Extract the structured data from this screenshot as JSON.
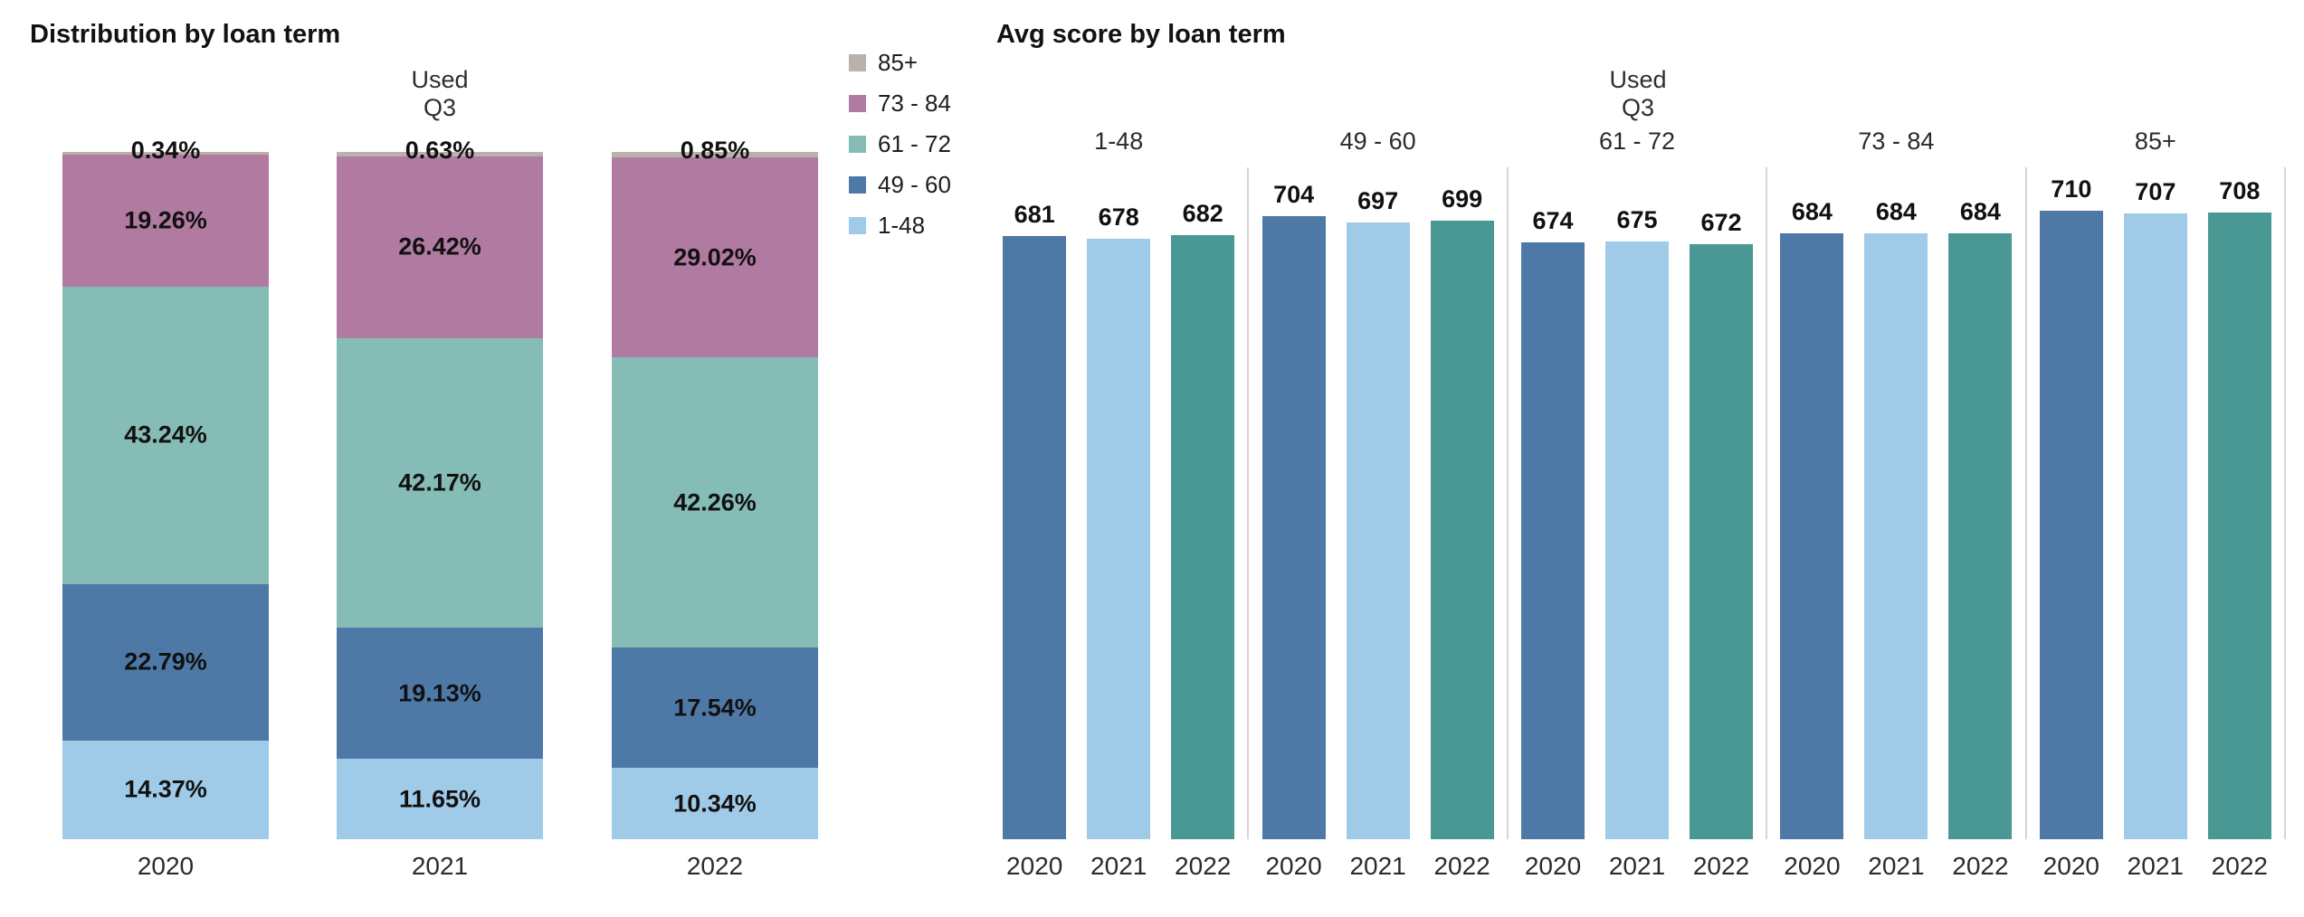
{
  "left_chart": {
    "title": "Distribution by loan term",
    "pane_header": [
      "Used",
      "Q3"
    ],
    "x_labels": [
      "2020",
      "2021",
      "2022"
    ]
  },
  "legend": {
    "items": [
      {
        "name": "swatch-85plus",
        "label": "85+",
        "color": "#BAB0AC"
      },
      {
        "name": "swatch-73-84",
        "label": "73 - 84",
        "color": "#B07AA1"
      },
      {
        "name": "swatch-61-72",
        "label": "61 - 72",
        "color": "#86BCB6"
      },
      {
        "name": "swatch-49-60",
        "label": "49 - 60",
        "color": "#4E79A7"
      },
      {
        "name": "swatch-1-48",
        "label": "1-48",
        "color": "#A0CBE8"
      }
    ]
  },
  "right_chart": {
    "title": "Avg score by loan term",
    "pane_header": [
      "Used",
      "Q3"
    ],
    "group_labels": [
      "1-48",
      "49 - 60",
      "61 - 72",
      "73 - 84",
      "85+"
    ],
    "x_labels": [
      "2020",
      "2021",
      "2022"
    ]
  },
  "chart_data": [
    {
      "type": "bar",
      "variant": "stacked_percent",
      "title": "Distribution by loan term",
      "pane_header": "Used Q3",
      "categories": [
        "2020",
        "2021",
        "2022"
      ],
      "series": [
        {
          "name": "85+",
          "color": "#BAB0AC",
          "values": [
            0.34,
            0.63,
            0.85
          ]
        },
        {
          "name": "73 - 84",
          "color": "#B07AA1",
          "values": [
            19.26,
            26.42,
            29.02
          ]
        },
        {
          "name": "61 - 72",
          "color": "#86BCB6",
          "values": [
            43.24,
            42.17,
            42.26
          ]
        },
        {
          "name": "49 - 60",
          "color": "#4E79A7",
          "values": [
            22.79,
            19.13,
            17.54
          ]
        },
        {
          "name": "1-48",
          "color": "#A0CBE8",
          "values": [
            14.37,
            11.65,
            10.34
          ]
        }
      ],
      "value_labels": [
        [
          "0.34%",
          "0.63%",
          "0.85%"
        ],
        [
          "19.26%",
          "26.42%",
          "29.02%"
        ],
        [
          "43.24%",
          "42.17%",
          "42.26%"
        ],
        [
          "22.79%",
          "19.13%",
          "17.54%"
        ],
        [
          "14.37%",
          "11.65%",
          "10.34%"
        ]
      ],
      "ylabel": "",
      "xlabel": "",
      "ylim": [
        0,
        100
      ],
      "grid": false,
      "legend_position": "right-of-chart"
    },
    {
      "type": "bar",
      "variant": "grouped",
      "title": "Avg score by loan term",
      "pane_header": "Used Q3",
      "groups": [
        "1-48",
        "49 - 60",
        "61 - 72",
        "73 - 84",
        "85+"
      ],
      "categories": [
        "2020",
        "2021",
        "2022"
      ],
      "series": [
        {
          "name": "2020",
          "color": "#4E79A7",
          "values": [
            681,
            704,
            674,
            684,
            710
          ]
        },
        {
          "name": "2021",
          "color": "#A0CBE8",
          "values": [
            678,
            697,
            675,
            684,
            707
          ]
        },
        {
          "name": "2022",
          "color": "#499894",
          "values": [
            682,
            699,
            672,
            684,
            708
          ]
        }
      ],
      "ylabel": "",
      "xlabel": "",
      "ylim": [
        0,
        760
      ],
      "grid": false
    }
  ]
}
